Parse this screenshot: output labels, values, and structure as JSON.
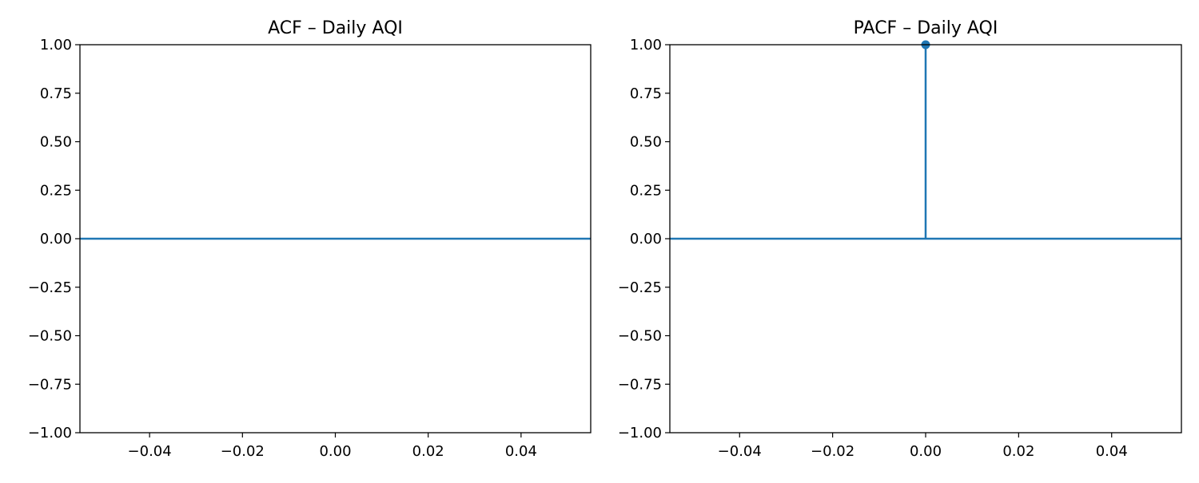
{
  "colors": {
    "series": "#1f77b4",
    "axes": "#000000",
    "background": "#ffffff"
  },
  "chart_data": [
    {
      "type": "stem",
      "title": "ACF – Daily AQI",
      "xlabel": "",
      "ylabel": "",
      "xlim": [
        -0.055,
        0.055
      ],
      "ylim": [
        -1.0,
        1.0
      ],
      "xticks": [
        -0.04,
        -0.02,
        0.0,
        0.02,
        0.04
      ],
      "xtick_labels": [
        "−0.04",
        "−0.02",
        "0.00",
        "0.02",
        "0.04"
      ],
      "yticks": [
        1.0,
        0.75,
        0.5,
        0.25,
        0.0,
        -0.25,
        -0.5,
        -0.75,
        -1.0
      ],
      "ytick_labels": [
        "1.00",
        "0.75",
        "0.50",
        "0.25",
        "0.00",
        "−0.25",
        "−0.50",
        "−0.75",
        "−1.00"
      ],
      "grid": false,
      "baseline": 0,
      "stems": []
    },
    {
      "type": "stem",
      "title": "PACF – Daily AQI",
      "xlabel": "",
      "ylabel": "",
      "xlim": [
        -0.055,
        0.055
      ],
      "ylim": [
        -1.0,
        1.0
      ],
      "xticks": [
        -0.04,
        -0.02,
        0.0,
        0.02,
        0.04
      ],
      "xtick_labels": [
        "−0.04",
        "−0.02",
        "0.00",
        "0.02",
        "0.04"
      ],
      "yticks": [
        1.0,
        0.75,
        0.5,
        0.25,
        0.0,
        -0.25,
        -0.5,
        -0.75,
        -1.0
      ],
      "ytick_labels": [
        "1.00",
        "0.75",
        "0.50",
        "0.25",
        "0.00",
        "−0.25",
        "−0.50",
        "−0.75",
        "−1.00"
      ],
      "grid": false,
      "baseline": 0,
      "stems": [
        {
          "x": 0.0,
          "y": 1.0
        }
      ]
    }
  ]
}
